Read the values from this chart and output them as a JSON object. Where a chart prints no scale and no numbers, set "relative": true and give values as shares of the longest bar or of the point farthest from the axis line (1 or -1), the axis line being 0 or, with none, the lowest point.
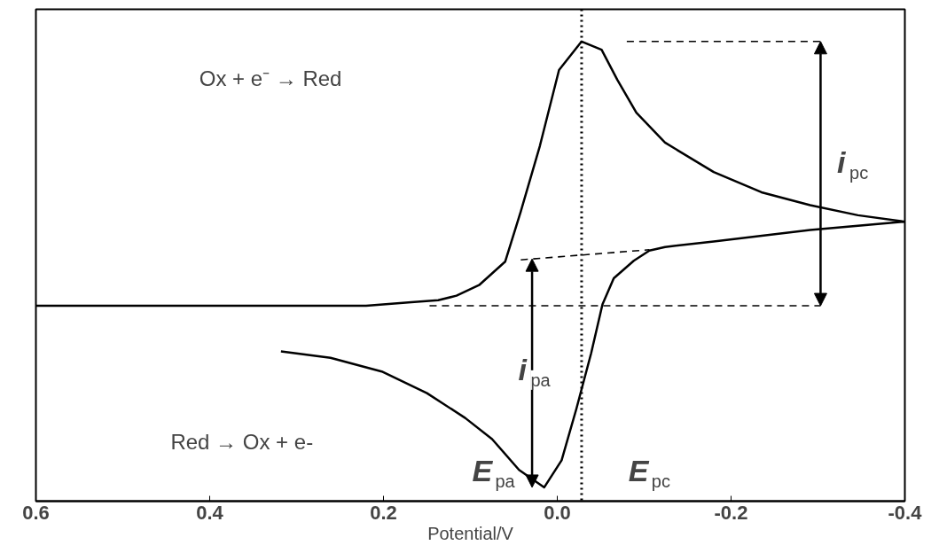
{
  "chart_data": {
    "type": "line",
    "relative": true,
    "xlabel": "Potential/V",
    "xlim": [
      0.6,
      -0.4
    ],
    "xticks": [
      0.6,
      0.4,
      0.2,
      {
        "value": 0,
        "label": "0.0"
      },
      -0.2,
      -0.4
    ],
    "grid": false,
    "marker": "none",
    "line_style": "solid",
    "series": [
      {
        "color": "#000000",
        "x": [
          0.6,
          0.4,
          0.22,
          0.168,
          0.137,
          0.116,
          0.09,
          0.06,
          0.042,
          0.02,
          -0.002,
          -0.028,
          -0.051,
          -0.069,
          -0.091,
          -0.124,
          -0.18,
          -0.235,
          -0.291,
          -0.346,
          -0.4
        ],
        "values": [
          0.425,
          0.425,
          0.425,
          0.433,
          0.437,
          0.447,
          0.47,
          0.521,
          0.63,
          0.773,
          0.938,
          1.0,
          0.982,
          0.917,
          0.845,
          0.78,
          0.716,
          0.672,
          0.644,
          0.622,
          0.608
        ]
      },
      {
        "color": "#000000",
        "x": [
          -0.4,
          -0.291,
          -0.18,
          -0.124,
          -0.106,
          -0.088,
          -0.065,
          -0.052,
          -0.039,
          -0.022,
          -0.005,
          0.015,
          0.044,
          0.075,
          0.106,
          0.15,
          0.202,
          0.261,
          0.318
        ],
        "values": [
          0.608,
          0.59,
          0.565,
          0.553,
          0.545,
          0.523,
          0.485,
          0.428,
          0.322,
          0.201,
          0.089,
          0.03,
          0.068,
          0.135,
          0.181,
          0.235,
          0.282,
          0.312,
          0.326
        ]
      },
      {
        "color": "#000000",
        "line_style": "dashed",
        "x": [
          0.147,
          -0.303
        ],
        "values": [
          0.425,
          0.425
        ]
      },
      {
        "color": "#000000",
        "line_style": "dashed",
        "x": [
          -0.08,
          -0.303
        ],
        "values": [
          1.0,
          1.0
        ]
      },
      {
        "color": "#000000",
        "line_style": "dashed",
        "x": [
          0.042,
          -0.106
        ],
        "values": [
          0.525,
          0.547
        ]
      }
    ],
    "ref_lines": [
      {
        "axis": "x",
        "value": -0.028,
        "line_style": "dotted",
        "color": "#000000"
      }
    ],
    "annotations": [
      "Ox + e⁻ → Red",
      "Red → Ox + e-",
      "i$_{pc}$",
      "i$_{pa}$",
      "E$_{pa}$",
      "E$_{pc}$"
    ]
  }
}
